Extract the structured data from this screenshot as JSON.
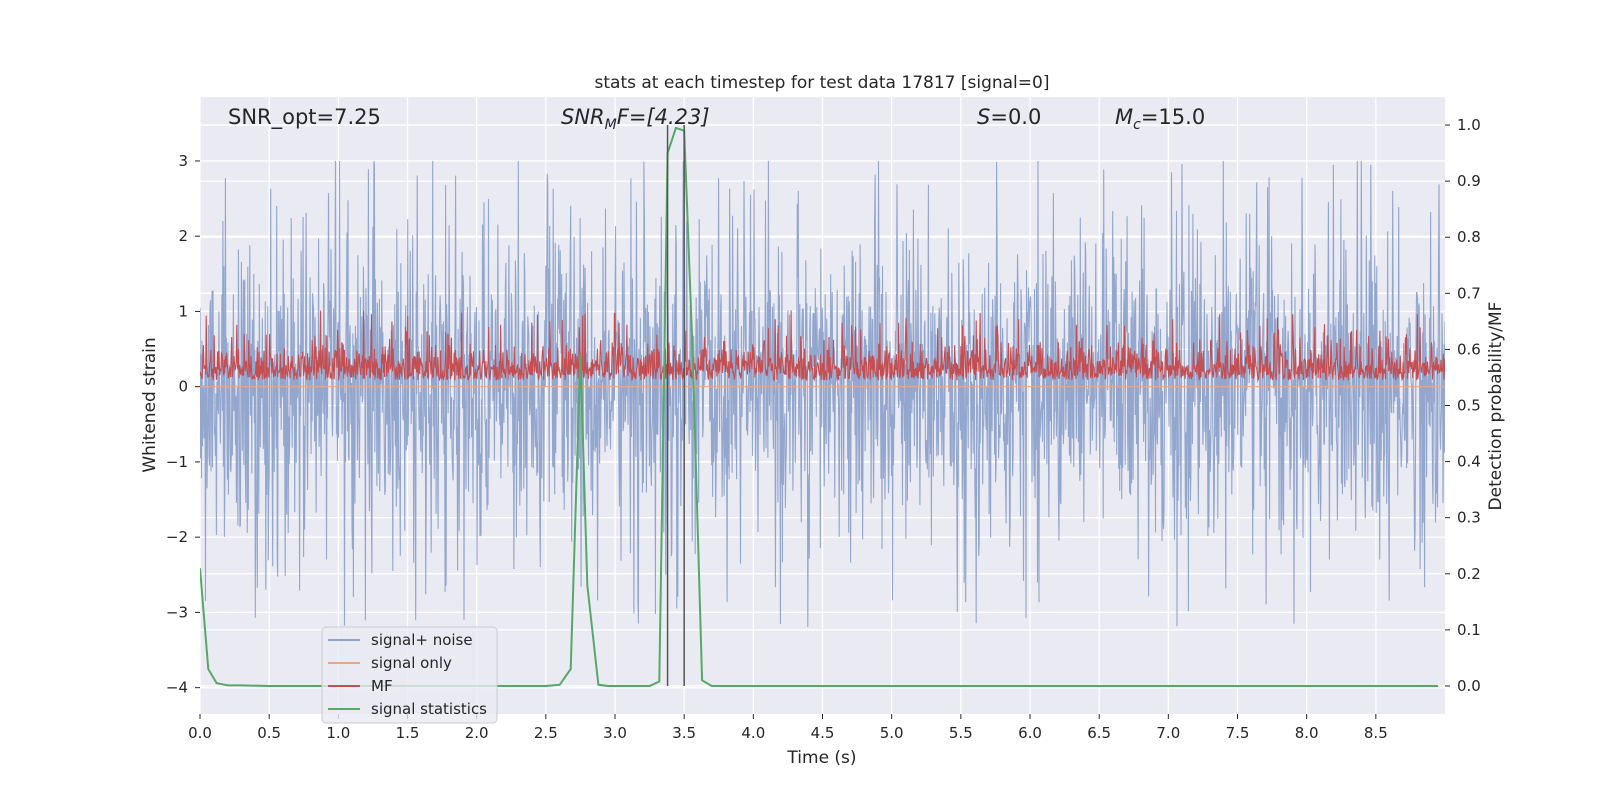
{
  "chart_data": {
    "type": "line",
    "title": "stats at each timestep for test data 17817 [signal=0]",
    "xlabel": "Time (s)",
    "ylabel_left": "Whitened strain",
    "ylabel_right": "Detection probability/MF",
    "xlim": [
      0,
      9.0
    ],
    "ylim_left": [
      -4.35,
      3.85
    ],
    "ylim_right": [
      -0.05,
      1.05
    ],
    "x_ticks": [
      0.0,
      0.5,
      1.0,
      1.5,
      2.0,
      2.5,
      3.0,
      3.5,
      4.0,
      4.5,
      5.0,
      5.5,
      6.0,
      6.5,
      7.0,
      7.5,
      8.0,
      8.5
    ],
    "x_tick_labels": [
      "0.0",
      "0.5",
      "1.0",
      "1.5",
      "2.0",
      "2.5",
      "3.0",
      "3.5",
      "4.0",
      "4.5",
      "5.0",
      "5.5",
      "6.0",
      "6.5",
      "7.0",
      "7.5",
      "8.0",
      "8.5"
    ],
    "y_left_ticks": [
      3,
      2,
      1,
      0,
      -1,
      -2,
      -3,
      -4
    ],
    "y_left_tick_labels": [
      "3",
      "2",
      "1",
      "0",
      "−1",
      "−2",
      "−3",
      "−4"
    ],
    "y_right_ticks": [
      1.0,
      0.9,
      0.8,
      0.7,
      0.6,
      0.5,
      0.4,
      0.3,
      0.2,
      0.1,
      0.0
    ],
    "y_right_tick_labels": [
      "1.0",
      "0.9",
      "0.8",
      "0.7",
      "0.6",
      "0.5",
      "0.4",
      "0.3",
      "0.2",
      "0.1",
      "0.0"
    ],
    "grid": true,
    "annotations": {
      "snr_opt": "SNR_opt=7.25",
      "snr_mf_prefix": "SNR",
      "snr_mf_sub": "M",
      "snr_mf_suffix": "F=[4.23]",
      "s_prefix": "S",
      "s_suffix": "=0.0",
      "mc_prefix": "M",
      "mc_sub": "c",
      "mc_suffix": "=15.0"
    },
    "vlines": [
      3.38,
      3.5
    ],
    "series": [
      {
        "name": "signal+ noise",
        "color": "#8da2cb",
        "axis": "left",
        "kind": "noise",
        "amplitude_typical": 1.6,
        "peak_max": 3.0,
        "peak_min": -4.0
      },
      {
        "name": "signal only",
        "color": "#e7a68a",
        "axis": "left",
        "kind": "flat",
        "value": 0.0
      },
      {
        "name": "MF",
        "color": "#c44e52",
        "axis": "right",
        "kind": "noise_band",
        "baseline": 0.55,
        "band_max": 0.64,
        "peak_max": 0.67
      },
      {
        "name": "signal statistics",
        "color": "#55a868",
        "axis": "right",
        "kind": "line",
        "x": [
          0.0,
          0.06,
          0.12,
          0.2,
          0.3,
          0.5,
          1.0,
          1.5,
          2.0,
          2.5,
          2.6,
          2.68,
          2.75,
          2.8,
          2.88,
          2.95,
          3.0,
          3.1,
          3.25,
          3.32,
          3.38,
          3.44,
          3.5,
          3.56,
          3.63,
          3.7,
          4.0,
          5.0,
          6.0,
          7.0,
          8.0,
          8.95
        ],
        "y": [
          0.21,
          0.03,
          0.005,
          0.001,
          0.001,
          0.0,
          0.0,
          0.0,
          0.0,
          0.0,
          0.002,
          0.03,
          0.59,
          0.18,
          0.002,
          0.0,
          0.0,
          0.0,
          0.0,
          0.008,
          0.95,
          0.995,
          0.99,
          0.6,
          0.01,
          0.0,
          0.0,
          0.0,
          0.0,
          0.0,
          0.0,
          0.0
        ]
      }
    ],
    "legend": {
      "position": "lower-left",
      "labels": [
        "signal+ noise",
        "signal only",
        "MF",
        "signal statistics"
      ]
    }
  }
}
